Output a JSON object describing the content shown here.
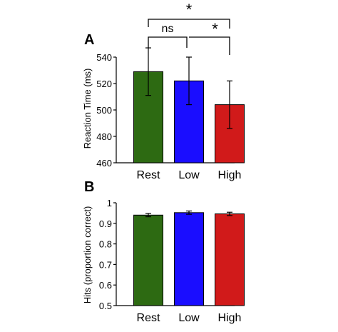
{
  "chart_data": [
    {
      "type": "bar",
      "panel": "A",
      "categories": [
        "Rest",
        "Low",
        "High"
      ],
      "values": [
        529,
        522,
        504
      ],
      "errors": [
        18,
        18,
        18
      ],
      "colors": [
        "#2d6a12",
        "#1a0dff",
        "#d11a1a"
      ],
      "ylabel": "Reaction Time (ms)",
      "ylim": [
        460,
        540
      ],
      "yticks": [
        "460",
        "480",
        "500",
        "520",
        "540"
      ],
      "significance": [
        {
          "from": "Rest",
          "to": "Low",
          "label": "ns"
        },
        {
          "from": "Low",
          "to": "High",
          "label": "*"
        },
        {
          "from": "Rest",
          "to": "High",
          "label": "*"
        }
      ]
    },
    {
      "type": "bar",
      "panel": "B",
      "categories": [
        "Rest",
        "Low",
        "High"
      ],
      "values": [
        0.94,
        0.952,
        0.946
      ],
      "errors": [
        0.008,
        0.008,
        0.008
      ],
      "colors": [
        "#2d6a12",
        "#1a0dff",
        "#d11a1a"
      ],
      "ylabel": "Hits (proportion correct)",
      "ylim": [
        0.5,
        1.0
      ],
      "yticks": [
        "0.5",
        "0.6",
        "0.7",
        "0.8",
        "0.9",
        "1"
      ]
    }
  ]
}
